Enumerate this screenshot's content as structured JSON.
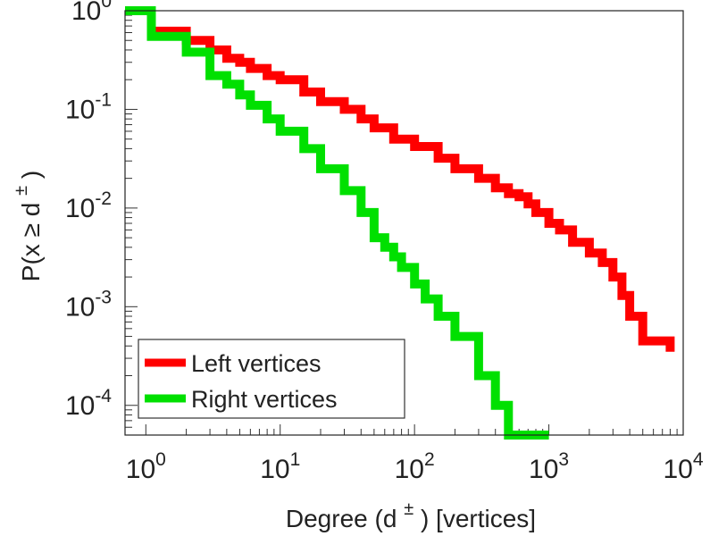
{
  "chart_data": {
    "type": "line",
    "title": "",
    "xlabel": "Degree (d",
    "xlabel_sup": "±",
    "xlabel_suffix": ") [vertices]",
    "ylabel": "P(x ≥ d",
    "ylabel_sup": "±",
    "ylabel_suffix": ")",
    "xscale": "log",
    "yscale": "log",
    "xlim": [
      0.7,
      10000
    ],
    "ylim": [
      5e-05,
      1
    ],
    "grid": false,
    "legend_position": "bottom-left",
    "x_ticks": [
      {
        "base": "10",
        "exp": "0",
        "value": 1
      },
      {
        "base": "10",
        "exp": "1",
        "value": 10
      },
      {
        "base": "10",
        "exp": "2",
        "value": 100
      },
      {
        "base": "10",
        "exp": "3",
        "value": 1000
      },
      {
        "base": "10",
        "exp": "4",
        "value": 10000
      }
    ],
    "y_ticks": [
      {
        "base": "10",
        "exp": "0",
        "value": 1
      },
      {
        "base": "10",
        "exp": "-1",
        "value": 0.1
      },
      {
        "base": "10",
        "exp": "-2",
        "value": 0.01
      },
      {
        "base": "10",
        "exp": "-3",
        "value": 0.001
      },
      {
        "base": "10",
        "exp": "-4",
        "value": 0.0001
      }
    ],
    "series": [
      {
        "name": "Left vertices",
        "color": "#ff0000",
        "x": [
          0.7,
          1.1,
          2,
          3,
          4,
          5,
          6,
          8,
          10,
          15,
          20,
          30,
          40,
          50,
          70,
          100,
          150,
          200,
          300,
          400,
          500,
          600,
          700,
          800,
          1000,
          1200,
          1500,
          2000,
          2500,
          3000,
          3500,
          4000,
          5000,
          6000,
          7000,
          8000
        ],
        "y": [
          1,
          0.62,
          0.5,
          0.4,
          0.33,
          0.3,
          0.26,
          0.22,
          0.2,
          0.15,
          0.12,
          0.1,
          0.08,
          0.065,
          0.05,
          0.042,
          0.032,
          0.025,
          0.02,
          0.016,
          0.014,
          0.013,
          0.011,
          0.009,
          0.007,
          0.006,
          0.0045,
          0.0035,
          0.0028,
          0.002,
          0.0013,
          0.0008,
          0.00045,
          0.00045,
          0.00045,
          0.00035
        ]
      },
      {
        "name": "Right vertices",
        "color": "#00e000",
        "x": [
          0.7,
          1.1,
          2,
          3,
          4,
          5,
          6,
          8,
          10,
          15,
          20,
          30,
          40,
          50,
          60,
          70,
          80,
          100,
          120,
          150,
          200,
          300,
          400,
          500,
          1000
        ],
        "y": [
          1,
          0.55,
          0.38,
          0.22,
          0.18,
          0.14,
          0.11,
          0.08,
          0.06,
          0.04,
          0.025,
          0.015,
          0.009,
          0.005,
          0.004,
          0.0032,
          0.0025,
          0.0017,
          0.0012,
          0.0008,
          0.0005,
          0.0002,
          0.0001,
          5e-05,
          5e-05
        ]
      }
    ]
  }
}
